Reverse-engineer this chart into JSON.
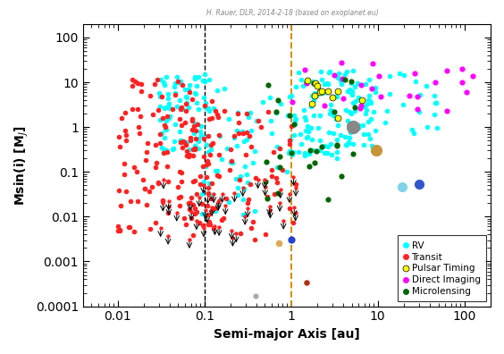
{
  "xlabel": "Semi-major Axis [au]",
  "ylabel": "Msin(i) [M$_J$]",
  "xlim": [
    0.004,
    200
  ],
  "ylim": [
    0.0001,
    200
  ],
  "dashed_black_x": 0.1,
  "dashed_orange_x": 1.0,
  "rv_color": "cyan",
  "rv_label": "RV",
  "transit_color": "#ff2222",
  "transit_label": "Transit",
  "pulsar_color": "yellow",
  "pulsar_label": "Pulsar Timing",
  "direct_color": "magenta",
  "direct_label": "Direct Imaging",
  "micro_color": "#006600",
  "micro_label": "Microlensing",
  "watermark": "H. Rauer, DLR, 2014-2-18 (based on exoplanet.eu)",
  "background_color": "white"
}
